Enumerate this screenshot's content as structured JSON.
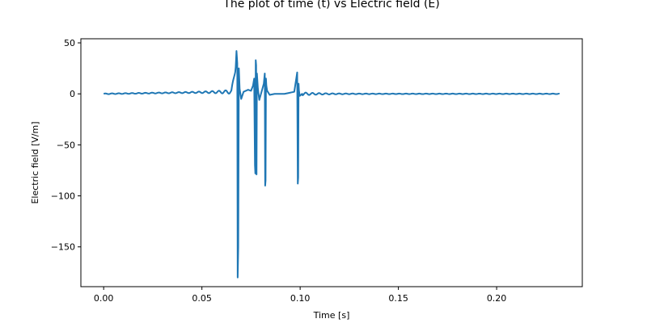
{
  "chart_data": {
    "type": "line",
    "title": "The plot of time (t) vs Electric field (E)",
    "xlabel": "Time [s]",
    "ylabel": "Electric field [V/m]",
    "xlim": [
      -0.0116,
      0.2436
    ],
    "ylim": [
      -189.0,
      54.0
    ],
    "xticks": [
      0.0,
      0.05,
      0.1,
      0.15,
      0.2
    ],
    "xtick_labels": [
      "0.00",
      "0.05",
      "0.10",
      "0.15",
      "0.20"
    ],
    "yticks": [
      50,
      0,
      -50,
      -100,
      -150
    ],
    "ytick_labels": [
      "50",
      "0",
      "−50",
      "−100",
      "−150"
    ],
    "grid": false,
    "legend": "none",
    "series": [
      {
        "color": "#1f77b4",
        "x": [
          0.0,
          0.065,
          0.0672,
          0.0676,
          0.068,
          0.0682,
          0.0685,
          0.0688,
          0.0692,
          0.07,
          0.0712,
          0.0735,
          0.075,
          0.076,
          0.0766,
          0.077,
          0.0772,
          0.0774,
          0.0776,
          0.0778,
          0.078,
          0.0785,
          0.0792,
          0.0805,
          0.0815,
          0.082,
          0.0822,
          0.0824,
          0.0826,
          0.0828,
          0.0832,
          0.0845,
          0.087,
          0.092,
          0.097,
          0.0985,
          0.0988,
          0.099,
          0.0992,
          0.0994,
          0.0998,
          0.101,
          0.232
        ],
        "y": [
          0,
          2,
          26,
          42,
          30,
          -180,
          -150,
          25,
          5,
          -5,
          2,
          4,
          3,
          8,
          15,
          -70,
          -78,
          33,
          28,
          -79,
          20,
          5,
          -6,
          3,
          10,
          20,
          -90,
          -85,
          15,
          8,
          3,
          -1,
          0,
          0,
          2,
          21,
          -88,
          -82,
          10,
          3,
          -2,
          0,
          0
        ]
      }
    ]
  }
}
